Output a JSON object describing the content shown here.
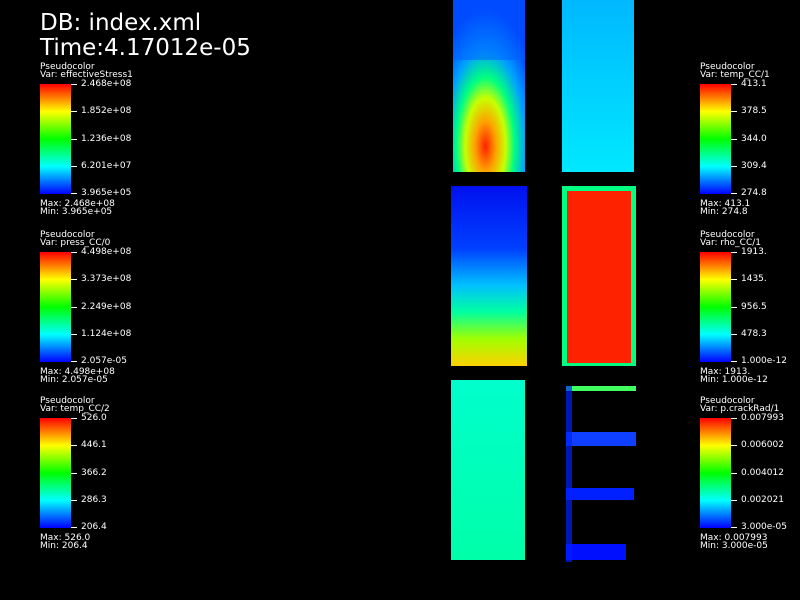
{
  "header": {
    "db": "DB: index.xml",
    "time": "Time:4.17012e-05"
  },
  "legends": [
    {
      "title": "Pseudocolor",
      "var": "Var: effectiveStress1",
      "ticks": [
        "2.468e+08",
        "1.852e+08",
        "1.236e+08",
        "6.201e+07",
        "3.965e+05"
      ],
      "max": "Max:  2.468e+08",
      "min": "Min:  3.965e+05"
    },
    {
      "title": "Pseudocolor",
      "var": "Var: press_CC/0",
      "ticks": [
        "4.498e+08",
        "3.373e+08",
        "2.249e+08",
        "1.124e+08",
        "2.057e-05"
      ],
      "max": "Max:  4.498e+08",
      "min": "Min:  2.057e-05"
    },
    {
      "title": "Pseudocolor",
      "var": "Var: temp_CC/2",
      "ticks": [
        "526.0",
        "446.1",
        "366.2",
        "286.3",
        "206.4"
      ],
      "max": "Max:  526.0",
      "min": "Min:  206.4"
    },
    {
      "title": "Pseudocolor",
      "var": "Var: temp_CC/1",
      "ticks": [
        "413.1",
        "378.5",
        "344.0",
        "309.4",
        "274.8"
      ],
      "max": "Max:  413.1",
      "min": "Min:  274.8"
    },
    {
      "title": "Pseudocolor",
      "var": "Var: rho_CC/1",
      "ticks": [
        "1913.",
        "1435.",
        "956.5",
        "478.3",
        "1.000e-12"
      ],
      "max": "Max:  1913.",
      "min": "Min:  1.000e-12"
    },
    {
      "title": "Pseudocolor",
      "var": "Var: p.crackRad/1",
      "ticks": [
        "0.007993",
        "0.006002",
        "0.004012",
        "0.002021",
        "3.000e-05"
      ],
      "max": "Max:  0.007993",
      "min": "Min:  3.000e-05"
    }
  ]
}
